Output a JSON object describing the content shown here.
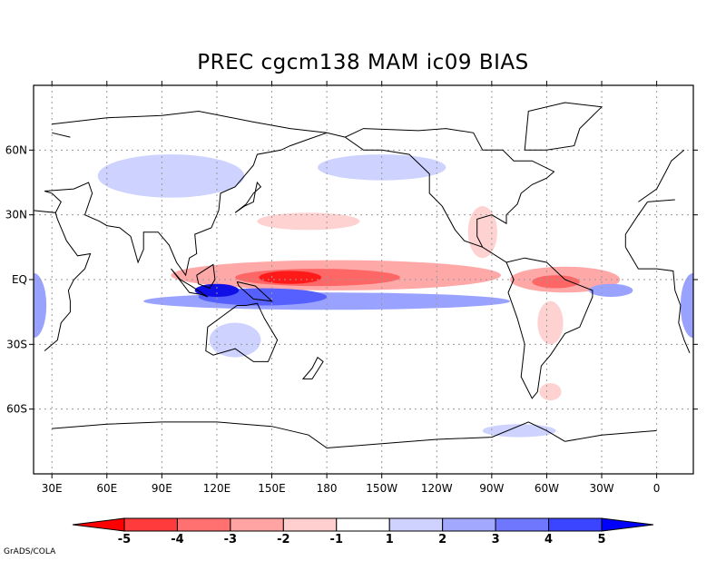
{
  "title": "PREC cgcm138 MAM ic09 BIAS",
  "footer": "GrADS/COLA",
  "x_axis": {
    "ticks": [
      {
        "label": "30E",
        "lon": 30
      },
      {
        "label": "60E",
        "lon": 60
      },
      {
        "label": "90E",
        "lon": 90
      },
      {
        "label": "120E",
        "lon": 120
      },
      {
        "label": "150E",
        "lon": 150
      },
      {
        "label": "180",
        "lon": 180
      },
      {
        "label": "150W",
        "lon": 210
      },
      {
        "label": "120W",
        "lon": 240
      },
      {
        "label": "90W",
        "lon": 270
      },
      {
        "label": "60W",
        "lon": 300
      },
      {
        "label": "30W",
        "lon": 330
      },
      {
        "label": "0",
        "lon": 360
      }
    ]
  },
  "y_axis": {
    "ticks": [
      {
        "label": "60N",
        "lat": 60
      },
      {
        "label": "30N",
        "lat": 30
      },
      {
        "label": "EQ",
        "lat": 0
      },
      {
        "label": "30S",
        "lat": -30
      },
      {
        "label": "60S",
        "lat": -60
      }
    ]
  },
  "colorbar": {
    "labels": [
      "-5",
      "-4",
      "-3",
      "-2",
      "-1",
      "1",
      "2",
      "3",
      "4",
      "5"
    ],
    "colors": [
      "#ff0000",
      "#ff3b3b",
      "#ff7070",
      "#ffa3a3",
      "#ffcfcf",
      "#ffffff",
      "#cfd2ff",
      "#a3a8ff",
      "#7077ff",
      "#3b44ff",
      "#0000ff"
    ]
  },
  "colors": {
    "red_strong": "#ff1a1a",
    "red_mid": "#ff6666",
    "red_light": "#ffa8a8",
    "red_pale": "#ffd2d2",
    "blue_strong": "#1010e6",
    "blue_mid": "#5560ff",
    "blue_light": "#9aa2ff",
    "blue_pale": "#cdd2ff",
    "coast": "#000000",
    "grid": "#999999"
  },
  "regions": [
    {
      "sign": "pos",
      "level": 1,
      "lon": 185,
      "lat": 2,
      "dlon": 90,
      "dlat": 7
    },
    {
      "sign": "pos",
      "level": 2,
      "lon": 175,
      "lat": 1,
      "dlon": 45,
      "dlat": 4
    },
    {
      "sign": "pos",
      "level": 3,
      "lon": 160,
      "lat": 1,
      "dlon": 17,
      "dlat": 3
    },
    {
      "sign": "pos",
      "level": 1,
      "lon": 310,
      "lat": 0,
      "dlon": 30,
      "dlat": 6
    },
    {
      "sign": "pos",
      "level": 2,
      "lon": 305,
      "lat": -1,
      "dlon": 13,
      "dlat": 3
    },
    {
      "sign": "pos",
      "level": 0,
      "lon": 265,
      "lat": 22,
      "dlon": 8,
      "dlat": 12
    },
    {
      "sign": "pos",
      "level": 0,
      "lon": 302,
      "lat": -20,
      "dlon": 7,
      "dlat": 10
    },
    {
      "sign": "pos",
      "level": 0,
      "lon": 170,
      "lat": 27,
      "dlon": 28,
      "dlat": 4
    },
    {
      "sign": "pos",
      "level": 0,
      "lon": 302,
      "lat": -52,
      "dlon": 6,
      "dlat": 4
    },
    {
      "sign": "neg",
      "level": 1,
      "lon": 180,
      "lat": -10,
      "dlon": 100,
      "dlat": 4
    },
    {
      "sign": "neg",
      "level": 2,
      "lon": 145,
      "lat": -8,
      "dlon": 35,
      "dlat": 4
    },
    {
      "sign": "neg",
      "level": 3,
      "lon": 120,
      "lat": -5,
      "dlon": 12,
      "dlat": 3
    },
    {
      "sign": "neg",
      "level": 0,
      "lon": 95,
      "lat": 48,
      "dlon": 40,
      "dlat": 10
    },
    {
      "sign": "neg",
      "level": 0,
      "lon": 210,
      "lat": 52,
      "dlon": 35,
      "dlat": 6
    },
    {
      "sign": "neg",
      "level": 1,
      "lon": 335,
      "lat": -5,
      "dlon": 12,
      "dlat": 3
    },
    {
      "sign": "neg",
      "level": 1,
      "lon": 20,
      "lat": -12,
      "dlon": 7,
      "dlat": 15
    },
    {
      "sign": "neg",
      "level": 0,
      "lon": 130,
      "lat": -28,
      "dlon": 14,
      "dlat": 8
    },
    {
      "sign": "neg",
      "level": 0,
      "lon": 285,
      "lat": -70,
      "dlon": 20,
      "dlat": 3
    }
  ],
  "coastlines": [
    [
      [
        14,
        78
      ],
      [
        30,
        72
      ],
      [
        60,
        75
      ],
      [
        90,
        76
      ],
      [
        110,
        78
      ],
      [
        140,
        73
      ],
      [
        160,
        70
      ],
      [
        180,
        68
      ],
      [
        190,
        66
      ]
    ],
    [
      [
        -10,
        36
      ],
      [
        0,
        42
      ],
      [
        5,
        50
      ],
      [
        8,
        55
      ],
      [
        15,
        60
      ],
      [
        30,
        68
      ],
      [
        40,
        66
      ]
    ],
    [
      [
        -5,
        36
      ],
      [
        10,
        37
      ],
      [
        20,
        32
      ],
      [
        32,
        31
      ],
      [
        35,
        36
      ],
      [
        30,
        40
      ],
      [
        26,
        41
      ],
      [
        42,
        42
      ],
      [
        50,
        45
      ],
      [
        52,
        40
      ],
      [
        48,
        30
      ],
      [
        56,
        27
      ],
      [
        60,
        25
      ],
      [
        67,
        24
      ],
      [
        73,
        20
      ],
      [
        77,
        8
      ],
      [
        80,
        14
      ],
      [
        80,
        22
      ],
      [
        88,
        22
      ],
      [
        94,
        16
      ],
      [
        98,
        8
      ],
      [
        103,
        2
      ],
      [
        105,
        10
      ],
      [
        109,
        12
      ],
      [
        108,
        21
      ],
      [
        117,
        24
      ],
      [
        121,
        32
      ],
      [
        122,
        40
      ],
      [
        130,
        43
      ],
      [
        135,
        48
      ],
      [
        140,
        53
      ],
      [
        142,
        58
      ],
      [
        155,
        60
      ],
      [
        160,
        62
      ],
      [
        170,
        65
      ],
      [
        180,
        68
      ]
    ],
    [
      [
        -17,
        15
      ],
      [
        -17,
        21
      ],
      [
        -10,
        30
      ],
      [
        -5,
        36
      ]
    ],
    [
      [
        -17,
        15
      ],
      [
        -10,
        5
      ],
      [
        0,
        5
      ],
      [
        9,
        4
      ],
      [
        10,
        -5
      ],
      [
        13,
        -12
      ],
      [
        12,
        -20
      ],
      [
        15,
        -28
      ],
      [
        18,
        -34
      ],
      [
        26,
        -33
      ],
      [
        33,
        -28
      ],
      [
        35,
        -20
      ],
      [
        40,
        -15
      ],
      [
        40,
        -10
      ],
      [
        39,
        -5
      ],
      [
        42,
        0
      ],
      [
        48,
        5
      ],
      [
        51,
        12
      ],
      [
        44,
        11
      ],
      [
        38,
        18
      ],
      [
        33,
        28
      ],
      [
        32,
        31
      ]
    ],
    [
      [
        115,
        -22
      ],
      [
        114,
        -33
      ],
      [
        118,
        -35
      ],
      [
        130,
        -32
      ],
      [
        140,
        -38
      ],
      [
        148,
        -38
      ],
      [
        153,
        -28
      ],
      [
        146,
        -18
      ],
      [
        142,
        -11
      ],
      [
        136,
        -12
      ],
      [
        131,
        -12
      ],
      [
        123,
        -17
      ],
      [
        115,
        -22
      ]
    ],
    [
      [
        95,
        5
      ],
      [
        105,
        -6
      ],
      [
        112,
        -7
      ],
      [
        115,
        -8
      ],
      [
        106,
        -3
      ],
      [
        100,
        0
      ],
      [
        95,
        5
      ]
    ],
    [
      [
        109,
        2
      ],
      [
        118,
        7
      ],
      [
        119,
        0
      ],
      [
        116,
        -4
      ],
      [
        110,
        -2
      ],
      [
        109,
        2
      ]
    ],
    [
      [
        131,
        -1
      ],
      [
        141,
        -3
      ],
      [
        150,
        -10
      ],
      [
        140,
        -9
      ],
      [
        132,
        -3
      ],
      [
        131,
        -1
      ]
    ],
    [
      [
        130,
        31
      ],
      [
        135,
        34
      ],
      [
        140,
        36
      ],
      [
        141,
        41
      ],
      [
        142,
        45
      ],
      [
        144,
        43
      ],
      [
        140,
        40
      ],
      [
        136,
        35
      ],
      [
        130,
        31
      ]
    ],
    [
      [
        172,
        -41
      ],
      [
        175,
        -36
      ],
      [
        178,
        -38
      ],
      [
        172,
        -46
      ],
      [
        167,
        -46
      ],
      [
        172,
        -41
      ]
    ],
    [
      [
        190,
        66
      ],
      [
        200,
        60
      ],
      [
        210,
        60
      ],
      [
        225,
        58
      ],
      [
        236,
        49
      ],
      [
        236,
        40
      ],
      [
        243,
        34
      ],
      [
        250,
        23
      ],
      [
        255,
        18
      ],
      [
        265,
        15
      ],
      [
        278,
        8
      ],
      [
        282,
        0
      ],
      [
        279,
        -6
      ],
      [
        284,
        -18
      ],
      [
        288,
        -30
      ],
      [
        286,
        -45
      ],
      [
        292,
        -55
      ],
      [
        295,
        -52
      ],
      [
        297,
        -40
      ],
      [
        302,
        -35
      ],
      [
        310,
        -25
      ],
      [
        318,
        -22
      ],
      [
        325,
        -8
      ],
      [
        325,
        -5
      ],
      [
        310,
        0
      ],
      [
        300,
        8
      ],
      [
        288,
        10
      ],
      [
        278,
        8
      ]
    ],
    [
      [
        265,
        15
      ],
      [
        262,
        20
      ],
      [
        262,
        28
      ],
      [
        270,
        30
      ],
      [
        278,
        26
      ],
      [
        278,
        30
      ],
      [
        284,
        35
      ],
      [
        286,
        40
      ],
      [
        292,
        44
      ],
      [
        300,
        47
      ],
      [
        304,
        50
      ],
      [
        292,
        55
      ],
      [
        282,
        55
      ],
      [
        276,
        60
      ],
      [
        265,
        60
      ],
      [
        260,
        68
      ],
      [
        245,
        70
      ],
      [
        230,
        69
      ],
      [
        200,
        70
      ],
      [
        190,
        66
      ]
    ],
    [
      [
        288,
        60
      ],
      [
        300,
        60
      ],
      [
        315,
        62
      ],
      [
        318,
        70
      ],
      [
        330,
        80
      ],
      [
        310,
        82
      ],
      [
        290,
        78
      ],
      [
        288,
        60
      ]
    ],
    [
      [
        310,
        -75
      ],
      [
        330,
        -72
      ],
      [
        360,
        -70
      ],
      [
        30,
        -69
      ],
      [
        60,
        -67
      ],
      [
        90,
        -66
      ],
      [
        120,
        -66
      ],
      [
        150,
        -68
      ],
      [
        170,
        -72
      ],
      [
        180,
        -78
      ],
      [
        210,
        -76
      ],
      [
        240,
        -74
      ],
      [
        270,
        -73
      ],
      [
        290,
        -66
      ],
      [
        300,
        -70
      ],
      [
        310,
        -75
      ]
    ]
  ]
}
